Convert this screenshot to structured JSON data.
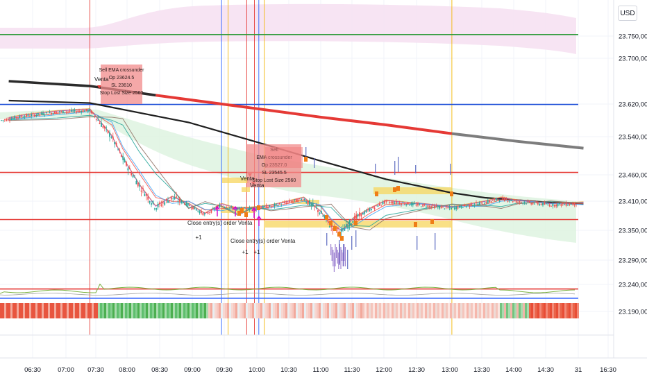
{
  "currency": "USD",
  "chart_data": {
    "type": "line",
    "y_ticks": [
      "23.750,00",
      "23.700,00",
      "23.620,00",
      "23.540,00",
      "23.460,00",
      "23.410,00",
      "23.350,00",
      "23.290,00",
      "23.240,00",
      "23.190,00"
    ],
    "x_ticks": [
      "06:30",
      "07:00",
      "07:30",
      "08:00",
      "08:30",
      "09:00",
      "09:30",
      "10:00",
      "10:30",
      "11:00",
      "11:30",
      "12:00",
      "12:30",
      "13:00",
      "13:30",
      "14:00",
      "14:30",
      "31",
      "16:30"
    ],
    "ylim": [
      23160,
      23800
    ],
    "xlim": [
      "06:16",
      "16:48"
    ],
    "horizontal_levels": [
      {
        "value": 23756,
        "color": "#2e9b3a"
      },
      {
        "value": 23612,
        "color": "#1e4fd8"
      },
      {
        "value": 23472,
        "color": "#e53935"
      },
      {
        "value": 23375,
        "color": "#e53935"
      },
      {
        "value": 23232,
        "color": "#e53935"
      },
      {
        "value": 23213,
        "color": "#3d6bff"
      }
    ],
    "vertical_markers": [
      {
        "x": "07:30",
        "color": "#e53935"
      },
      {
        "x": "09:30",
        "color": "#2962ff"
      },
      {
        "x": "09:36",
        "color": "#f2b705"
      },
      {
        "x": "09:53",
        "color": "#e53935"
      },
      {
        "x": "10:00",
        "color": "#e53935"
      },
      {
        "x": "10:04",
        "color": "#2962ff"
      },
      {
        "x": "10:09",
        "color": "#f2b705"
      },
      {
        "x": "13:00",
        "color": "#f2b705"
      }
    ],
    "series": [
      {
        "x": [
          "06:16",
          "07:30",
          "09:00",
          "10:00",
          "11:00",
          "12:00",
          "13:00",
          "13:30",
          "14:30",
          "15:00"
        ],
        "values": [
          23620,
          23615,
          23575,
          23536,
          23496,
          23458,
          23430,
          23420,
          23410,
          23408
        ]
      },
      {
        "x": [
          "06:16",
          "07:30",
          "08:30",
          "09:00",
          "10:00",
          "11:00",
          "12:00",
          "13:00",
          "14:00",
          "15:00"
        ],
        "values": [
          23660,
          23650,
          23631,
          23622,
          23604,
          23586,
          23570,
          23552,
          23536,
          23522
        ]
      },
      {
        "x": [
          "06:16",
          "06:30",
          "07:00",
          "07:30",
          "07:50",
          "08:00",
          "08:15",
          "08:30",
          "08:45",
          "09:00",
          "09:15",
          "09:30",
          "09:45",
          "10:00",
          "10:15",
          "10:30",
          "10:45",
          "11:00",
          "11:10",
          "11:20",
          "11:30",
          "11:45",
          "12:00",
          "12:30",
          "13:00",
          "13:30",
          "13:45",
          "14:00",
          "14:30",
          "15:00"
        ],
        "values": [
          23582,
          23588,
          23596,
          23600,
          23545,
          23500,
          23445,
          23400,
          23420,
          23405,
          23385,
          23405,
          23395,
          23398,
          23402,
          23410,
          23418,
          23390,
          23360,
          23350,
          23375,
          23395,
          23412,
          23405,
          23398,
          23410,
          23418,
          23412,
          23405,
          23408
        ]
      }
    ],
    "trade_labels": [
      "Venta",
      "Venta",
      "Venta",
      "Close entry(s) order Venta",
      "Close entry(s) order Venta",
      "+1",
      "+1",
      "+1"
    ],
    "trade_box": {
      "lines": [
        "Sell  EMA crossunder",
        "Op 23624.5",
        "SL 23610",
        "Stop Lost Size 2560"
      ]
    },
    "trade_box_2": {
      "lines": [
        "Sell",
        "EMA crossunder",
        "Op 23527.0",
        "SL 23545.5",
        "Stop Lost Size 2560"
      ]
    }
  }
}
